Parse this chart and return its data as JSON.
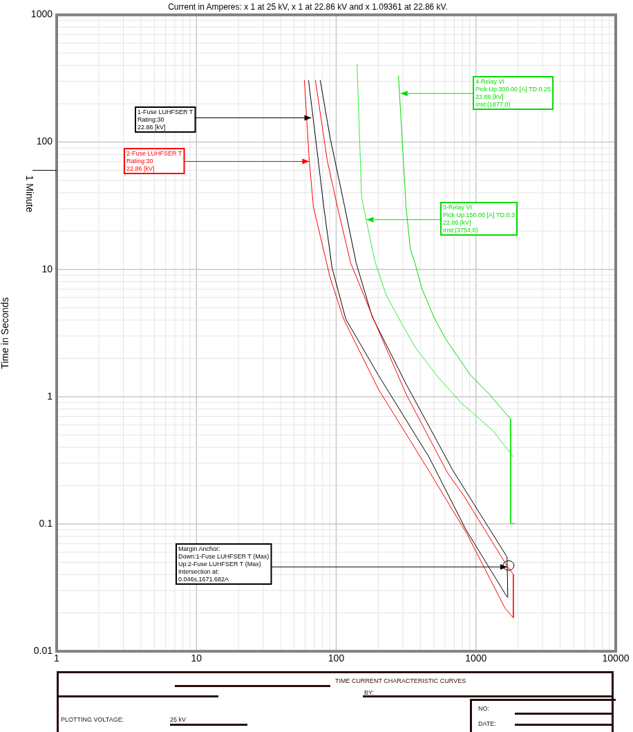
{
  "chart_data": {
    "type": "line",
    "title": "Current in Amperes: x 1 at 25 kV, x 1 at 22.86 kV and x 1.09361 at 22.86 kV.",
    "ylabel": "Time in Seconds",
    "log": "xy",
    "xlim": [
      1,
      10000
    ],
    "xticks": [
      1,
      10,
      100,
      1000,
      10000
    ],
    "ylim": [
      0.01,
      1000
    ],
    "yticks": [
      0.01,
      0.1,
      1,
      10,
      100,
      1000
    ],
    "grid": true,
    "legend": false,
    "marker": "none",
    "line_style": "solid",
    "series": [
      {
        "color": "#ff0000",
        "x": [
          59.2,
          64.1,
          68.7,
          90.2,
          113,
          200,
          461,
          863,
          1615,
          1850
        ],
        "values": [
          306,
          72.3,
          31.0,
          8.72,
          4.08,
          1.15,
          0.261,
          0.0835,
          0.0218,
          0.0183
        ]
      },
      {
        "color": "#ff0000",
        "x": [
          71.0,
          86.2,
          102,
          127,
          185,
          316,
          627,
          815,
          1670,
          1850,
          1850
        ],
        "values": [
          306,
          72.3,
          31.0,
          11.2,
          4.08,
          1.05,
          0.251,
          0.168,
          0.0467,
          0.0401,
          0.0183
        ]
      },
      {
        "color": "#000000",
        "x": [
          63.4,
          71.0,
          81.5,
          93.4,
          117,
          200,
          461,
          843,
          1670
        ],
        "values": [
          306,
          110,
          31.0,
          10.3,
          4.08,
          1.48,
          0.336,
          0.0912,
          0.0267
        ]
      },
      {
        "color": "#000000",
        "x": [
          76.9,
          90.2,
          115,
          139,
          181,
          316,
          687,
          1670,
          1690
        ],
        "values": [
          306,
          110,
          31.0,
          11.2,
          4.24,
          1.26,
          0.261,
          0.055,
          0.0264
        ]
      },
      {
        "color": "#33ee33",
        "x": [
          141,
          152,
          181,
          191,
          227,
          282,
          366,
          534,
          787,
          1330,
          1850
        ],
        "values": [
          410,
          36.5,
          14.5,
          11.2,
          6.35,
          4.08,
          2.46,
          1.43,
          0.892,
          0.537,
          0.336
        ]
      },
      {
        "color": "#00dd00",
        "x": [
          279,
          316,
          339,
          366,
          411,
          499,
          599,
          912,
          1241,
          1770,
          1770,
          1892
        ],
        "values": [
          335,
          31.0,
          14.5,
          11.2,
          7.03,
          4.24,
          2.9,
          1.48,
          1.05,
          0.667,
          0.101,
          0.101
        ]
      }
    ],
    "ref_lines": [
      {
        "axis": "y",
        "value": 60,
        "label": "1 Minute"
      }
    ],
    "annotations": [
      {
        "text": "1-Fuse LUHFSER T\nRating:30\n22.86 [kV]",
        "x": 66.4,
        "y": 155
      },
      {
        "text": "2-Fuse LUHFSER T\nRating:30\n22.86 [kV]",
        "x": 64.1,
        "y": 70.5
      },
      {
        "text": "4-Relay VI\nPick Up:300.00 [A] TD:0.25\n22.86 [kV]\nInst:(1877,0)",
        "x": 289,
        "y": 241
      },
      {
        "text": "3-Relay VI\nPick Up:150.00 [A] TD:0.3\n22.86 [kV]\nInst:(3754,0)",
        "x": 165,
        "y": 24.6
      },
      {
        "text": "Margin Anchor:\nDown:1-Fuse LUHFSER T (Max)\nUp:2-Fuse LUHFSER T (Max)\nIntersection at:\n0.046s,1671.682A",
        "x": 1671.682,
        "y": 0.046
      },
      "TIME CURRENT CHARACTERISTIC CURVES",
      "BY:",
      "PLOTTING VOLTAGE:",
      "25 kV",
      "NO:",
      "DATE:"
    ]
  }
}
